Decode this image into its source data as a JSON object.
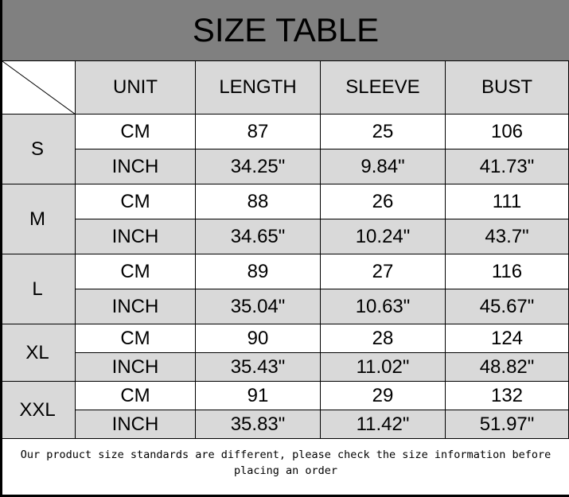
{
  "title": "SIZE TABLE",
  "headers": [
    "UNIT",
    "LENGTH",
    "SLEEVE",
    "BUST"
  ],
  "sizes": [
    {
      "size": "S",
      "rows": [
        [
          "CM",
          "87",
          "25",
          "106"
        ],
        [
          "INCH",
          "34.25\"",
          "9.84\"",
          "41.73\""
        ]
      ]
    },
    {
      "size": "M",
      "rows": [
        [
          "CM",
          "88",
          "26",
          "111"
        ],
        [
          "INCH",
          "34.65\"",
          "10.24\"",
          "43.7\""
        ]
      ]
    },
    {
      "size": "L",
      "rows": [
        [
          "CM",
          "89",
          "27",
          "116"
        ],
        [
          "INCH",
          "35.04\"",
          "10.63\"",
          "45.67\""
        ]
      ]
    },
    {
      "size": "XL",
      "rows": [
        [
          "CM",
          "90",
          "28",
          "124"
        ],
        [
          "INCH",
          "35.43\"",
          "11.02\"",
          "48.82\""
        ]
      ]
    },
    {
      "size": "XXL",
      "rows": [
        [
          "CM",
          "91",
          "29",
          "132"
        ],
        [
          "INCH",
          "35.83\"",
          "11.42\"",
          "51.97\""
        ]
      ]
    }
  ],
  "footer": "Our product size standards are different, please check the size information before placing an order"
}
